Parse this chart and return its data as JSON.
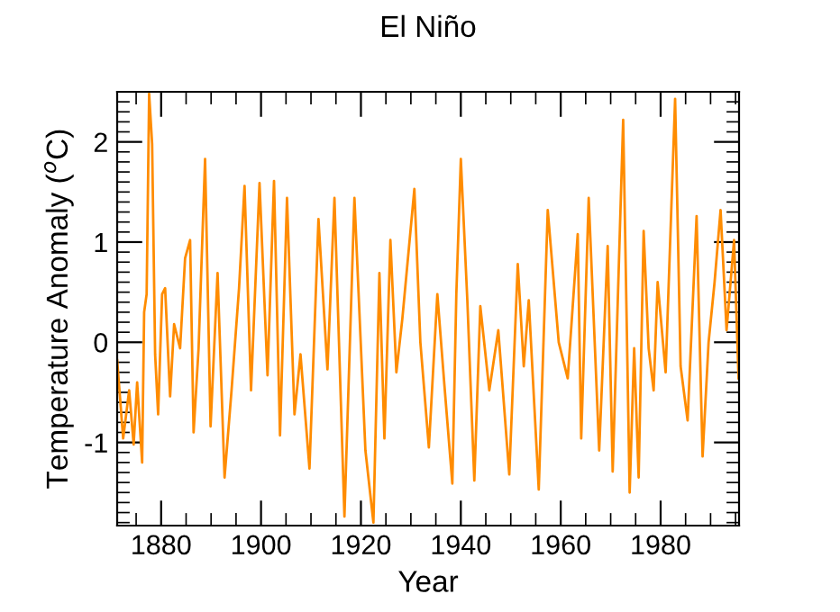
{
  "chart_data": {
    "type": "line",
    "title": "El Niño",
    "xlabel": "Year",
    "ylabel": "Temperature Anomaly ($^{o}$C)",
    "xlim": [
      1871.2,
      1995.7
    ],
    "xticks": [
      1880,
      1900,
      1920,
      1940,
      1960,
      1980
    ],
    "ylim": [
      -1.83,
      2.5
    ],
    "yticks": [
      -1,
      0,
      1,
      2
    ],
    "grid": false,
    "legend": false,
    "marker": "none",
    "line_style": "solid",
    "series": [
      {
        "color": "#ff8c00",
        "x": [
          1871.2,
          1872.4,
          1873.6,
          1874.5,
          1875.2,
          1876.2,
          1876.6,
          1877.1,
          1877.6,
          1878.2,
          1878.8,
          1879.4,
          1880.2,
          1880.8,
          1881.8,
          1882.6,
          1883.8,
          1884.8,
          1885.8,
          1886.5,
          1887.5,
          1888.8,
          1889.9,
          1891.3,
          1892.7,
          1894.1,
          1895.6,
          1896.7,
          1898.0,
          1899.7,
          1901.3,
          1902.6,
          1903.8,
          1905.2,
          1906.7,
          1907.9,
          1909.7,
          1911.5,
          1913.3,
          1914.7,
          1916.7,
          1918.7,
          1920.9,
          1922.5,
          1923.7,
          1924.7,
          1925.9,
          1927.1,
          1928.3,
          1930.7,
          1931.9,
          1933.6,
          1935.3,
          1936.7,
          1938.3,
          1939.1,
          1940.0,
          1941.3,
          1942.7,
          1943.9,
          1945.7,
          1947.5,
          1949.7,
          1951.4,
          1952.6,
          1953.6,
          1955.6,
          1957.4,
          1959.6,
          1961.4,
          1963.4,
          1964.1,
          1965.6,
          1967.7,
          1969.4,
          1970.4,
          1972.5,
          1973.8,
          1974.7,
          1975.6,
          1976.6,
          1977.6,
          1978.6,
          1979.4,
          1981.0,
          1982.9,
          1984.0,
          1985.4,
          1987.2,
          1988.4,
          1989.6,
          1990.8,
          1992.0,
          1993.2,
          1994.7,
          1995.6
        ],
        "values": [
          -0.18,
          -0.96,
          -0.48,
          -1.02,
          -0.4,
          -1.2,
          0.3,
          0.48,
          2.48,
          1.98,
          -0.12,
          -0.72,
          0.48,
          0.54,
          -0.54,
          0.18,
          -0.06,
          0.84,
          1.02,
          -0.9,
          -0.06,
          1.83,
          -0.84,
          0.69,
          -1.35,
          -0.48,
          0.54,
          1.56,
          -0.48,
          1.59,
          -0.33,
          1.61,
          -0.93,
          1.44,
          -0.72,
          -0.12,
          -1.26,
          1.23,
          -0.27,
          1.44,
          -1.74,
          1.44,
          -1.08,
          -1.8,
          0.69,
          -0.96,
          1.02,
          -0.3,
          0.24,
          1.53,
          0,
          -1.05,
          0.48,
          -0.42,
          -1.41,
          0.48,
          1.83,
          0.42,
          -1.38,
          0.36,
          -0.48,
          0.12,
          -1.32,
          0.78,
          -0.24,
          0.42,
          -1.47,
          1.32,
          0,
          -0.36,
          1.08,
          -0.96,
          1.44,
          -1.08,
          0.96,
          -1.29,
          2.22,
          -1.5,
          -0.06,
          -1.35,
          1.11,
          -0.06,
          -0.48,
          0.6,
          -0.3,
          2.43,
          -0.24,
          -0.78,
          1.26,
          -1.14,
          0,
          0.6,
          1.32,
          0.12,
          1.02,
          -0.36
        ]
      }
    ]
  }
}
